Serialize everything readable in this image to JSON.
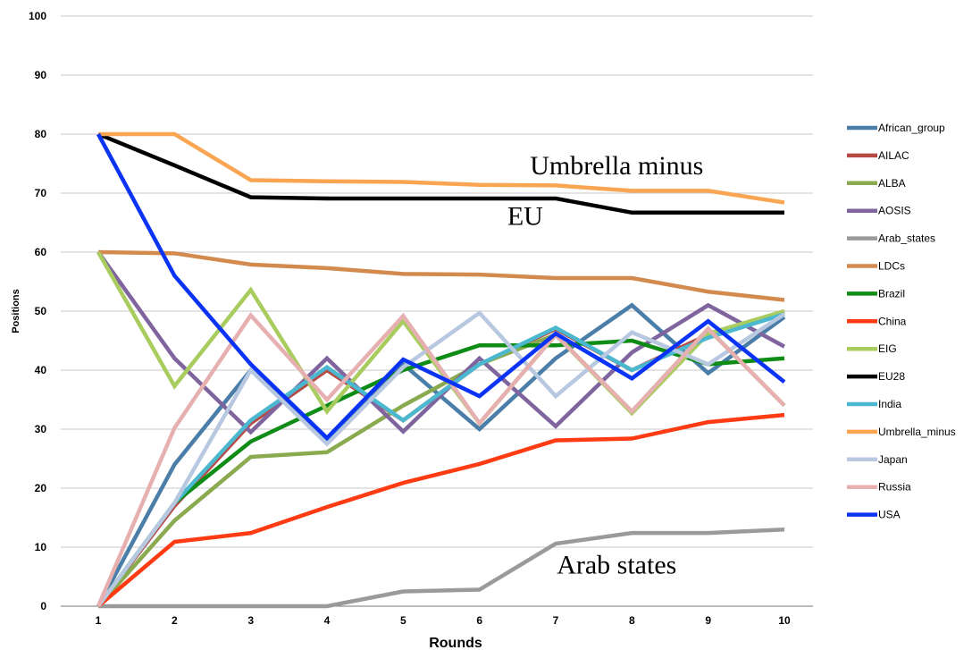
{
  "chart_data": {
    "type": "line",
    "xlabel": "Rounds",
    "ylabel": "Positions",
    "x": [
      1,
      2,
      3,
      4,
      5,
      6,
      7,
      8,
      9,
      10
    ],
    "ylim": [
      0,
      100
    ],
    "yticks": [
      0,
      10,
      20,
      30,
      40,
      50,
      60,
      70,
      80,
      90,
      100
    ],
    "grid": true,
    "legend_position": "right",
    "series": [
      {
        "name": "African_group",
        "color": "#4A7EA8",
        "values": [
          0,
          24,
          40,
          28,
          41,
          30,
          42,
          51,
          39.5,
          49
        ]
      },
      {
        "name": "AILAC",
        "color": "#B84A45",
        "values": [
          0,
          17,
          31,
          40,
          31.5,
          41,
          47,
          40,
          46,
          50
        ]
      },
      {
        "name": "ALBA",
        "color": "#8AAA4F",
        "values": [
          0,
          14.5,
          25.3,
          26.1,
          34,
          41,
          46,
          33,
          47,
          34
        ]
      },
      {
        "name": "AOSIS",
        "color": "#7F649E",
        "values": [
          60,
          42,
          29.5,
          42,
          29.6,
          42,
          30.5,
          43,
          51,
          44
        ]
      },
      {
        "name": "Arab_states",
        "color": "#9A9A9A",
        "values": [
          0,
          0,
          0,
          0,
          2.5,
          2.8,
          10.6,
          12.4,
          12.4,
          13
        ]
      },
      {
        "name": "LDCs",
        "color": "#D38A4E",
        "values": [
          60,
          59.8,
          57.9,
          57.3,
          56.3,
          56.2,
          55.6,
          55.6,
          53.3,
          51.9
        ]
      },
      {
        "name": "Brazil",
        "color": "#0E8C16",
        "values": [
          0,
          17.5,
          27.9,
          34,
          40,
          44.2,
          44.2,
          45,
          41,
          42
        ]
      },
      {
        "name": "China",
        "color": "#FF3B14",
        "values": [
          0,
          10.9,
          12.4,
          16.8,
          20.9,
          24.1,
          28.1,
          28.4,
          31.2,
          32.4
        ]
      },
      {
        "name": "EIG",
        "color": "#A9CC5E",
        "values": [
          60,
          37.3,
          53.6,
          33,
          48.3,
          31,
          46,
          32.7,
          46.2,
          50
        ]
      },
      {
        "name": "EU28",
        "color": "#000000",
        "values": [
          80,
          74.7,
          69.3,
          69.1,
          69.1,
          69.1,
          69.1,
          66.7,
          66.7,
          66.7
        ]
      },
      {
        "name": "India",
        "color": "#4BB8CF",
        "values": [
          0,
          17.5,
          31.5,
          40.5,
          31.5,
          41,
          47.2,
          40,
          45.5,
          49.5
        ]
      },
      {
        "name": "Umbrella_minus",
        "color": "#F9A552",
        "values": [
          80,
          80,
          72.2,
          72,
          71.9,
          71.4,
          71.3,
          70.4,
          70.4,
          68.4
        ]
      },
      {
        "name": "Japan",
        "color": "#B7C8E0",
        "values": [
          0,
          17.5,
          40,
          27.5,
          40.5,
          49.7,
          35.6,
          46.4,
          41,
          49.5
        ]
      },
      {
        "name": "Russia",
        "color": "#E6B0B0",
        "values": [
          0,
          30.2,
          49.3,
          35,
          49.2,
          31,
          46,
          33,
          47,
          34
        ]
      },
      {
        "name": "USA",
        "color": "#0A33F5",
        "values": [
          80,
          56,
          41,
          28.5,
          41.8,
          35.6,
          46.2,
          38.6,
          48.3,
          38
        ]
      }
    ],
    "annotations": [
      {
        "text": "Umbrella minus",
        "x": 7.8,
        "y": 73.2
      },
      {
        "text": "EU",
        "x": 6.6,
        "y": 64.6
      },
      {
        "text": "Arab states",
        "x": 7.8,
        "y": 5.5
      }
    ]
  }
}
